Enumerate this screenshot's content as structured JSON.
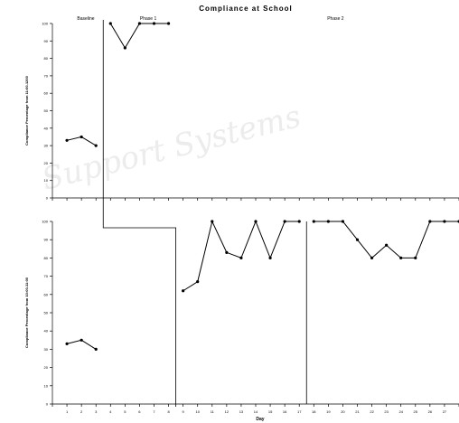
{
  "chart_data": {
    "type": "line",
    "title": "Compliance at School",
    "xlabel": "Day",
    "x": [
      1,
      2,
      3,
      4,
      5,
      6,
      7,
      8,
      9,
      10,
      11,
      12,
      13,
      14,
      15,
      16,
      17,
      18,
      19,
      20,
      21,
      22,
      23,
      24,
      25,
      26,
      27
    ],
    "xlim": [
      0,
      28
    ],
    "phases": [
      "Baseline",
      "Phase 1",
      "Phase 2"
    ],
    "panels": [
      {
        "ylabel": "Compliance Percentage from 11:00-1200",
        "ylim": [
          0,
          100
        ],
        "yticks": [
          0,
          10,
          20,
          30,
          40,
          50,
          60,
          70,
          80,
          90,
          100
        ],
        "yticklabels": [
          "0",
          "10",
          "20",
          "30",
          "40",
          "50",
          "60",
          "70",
          "80",
          "90",
          "100"
        ],
        "segments": [
          {
            "x": [
              1,
              2,
              3
            ],
            "y": [
              33,
              35,
              30
            ]
          },
          {
            "x": [
              4,
              5,
              6,
              7,
              8
            ],
            "y": [
              100,
              86,
              100,
              100,
              100
            ]
          }
        ]
      },
      {
        "ylabel": "Compliance Percentage from 10:00-11:00",
        "ylim": [
          0,
          100
        ],
        "yticks": [
          0,
          10,
          20,
          30,
          40,
          50,
          60,
          70,
          80,
          90,
          100
        ],
        "yticklabels": [
          "0",
          "10",
          "20",
          "30",
          "40",
          "50",
          "60",
          "70",
          "80",
          "90",
          "100"
        ],
        "segments": [
          {
            "x": [
              1,
              2,
              3
            ],
            "y": [
              33,
              35,
              30
            ]
          },
          {
            "x": [
              9,
              10,
              11,
              12,
              13,
              14,
              15,
              16,
              17
            ],
            "y": [
              62,
              67,
              100,
              83,
              80,
              100,
              80,
              100,
              100
            ]
          },
          {
            "x": [
              18,
              19,
              20,
              21,
              22,
              23,
              24,
              25,
              26,
              27,
              28
            ],
            "y": [
              100,
              100,
              100,
              90,
              80,
              87,
              80,
              80,
              100,
              100,
              100
            ]
          }
        ]
      }
    ]
  },
  "watermark": "Support Systems"
}
